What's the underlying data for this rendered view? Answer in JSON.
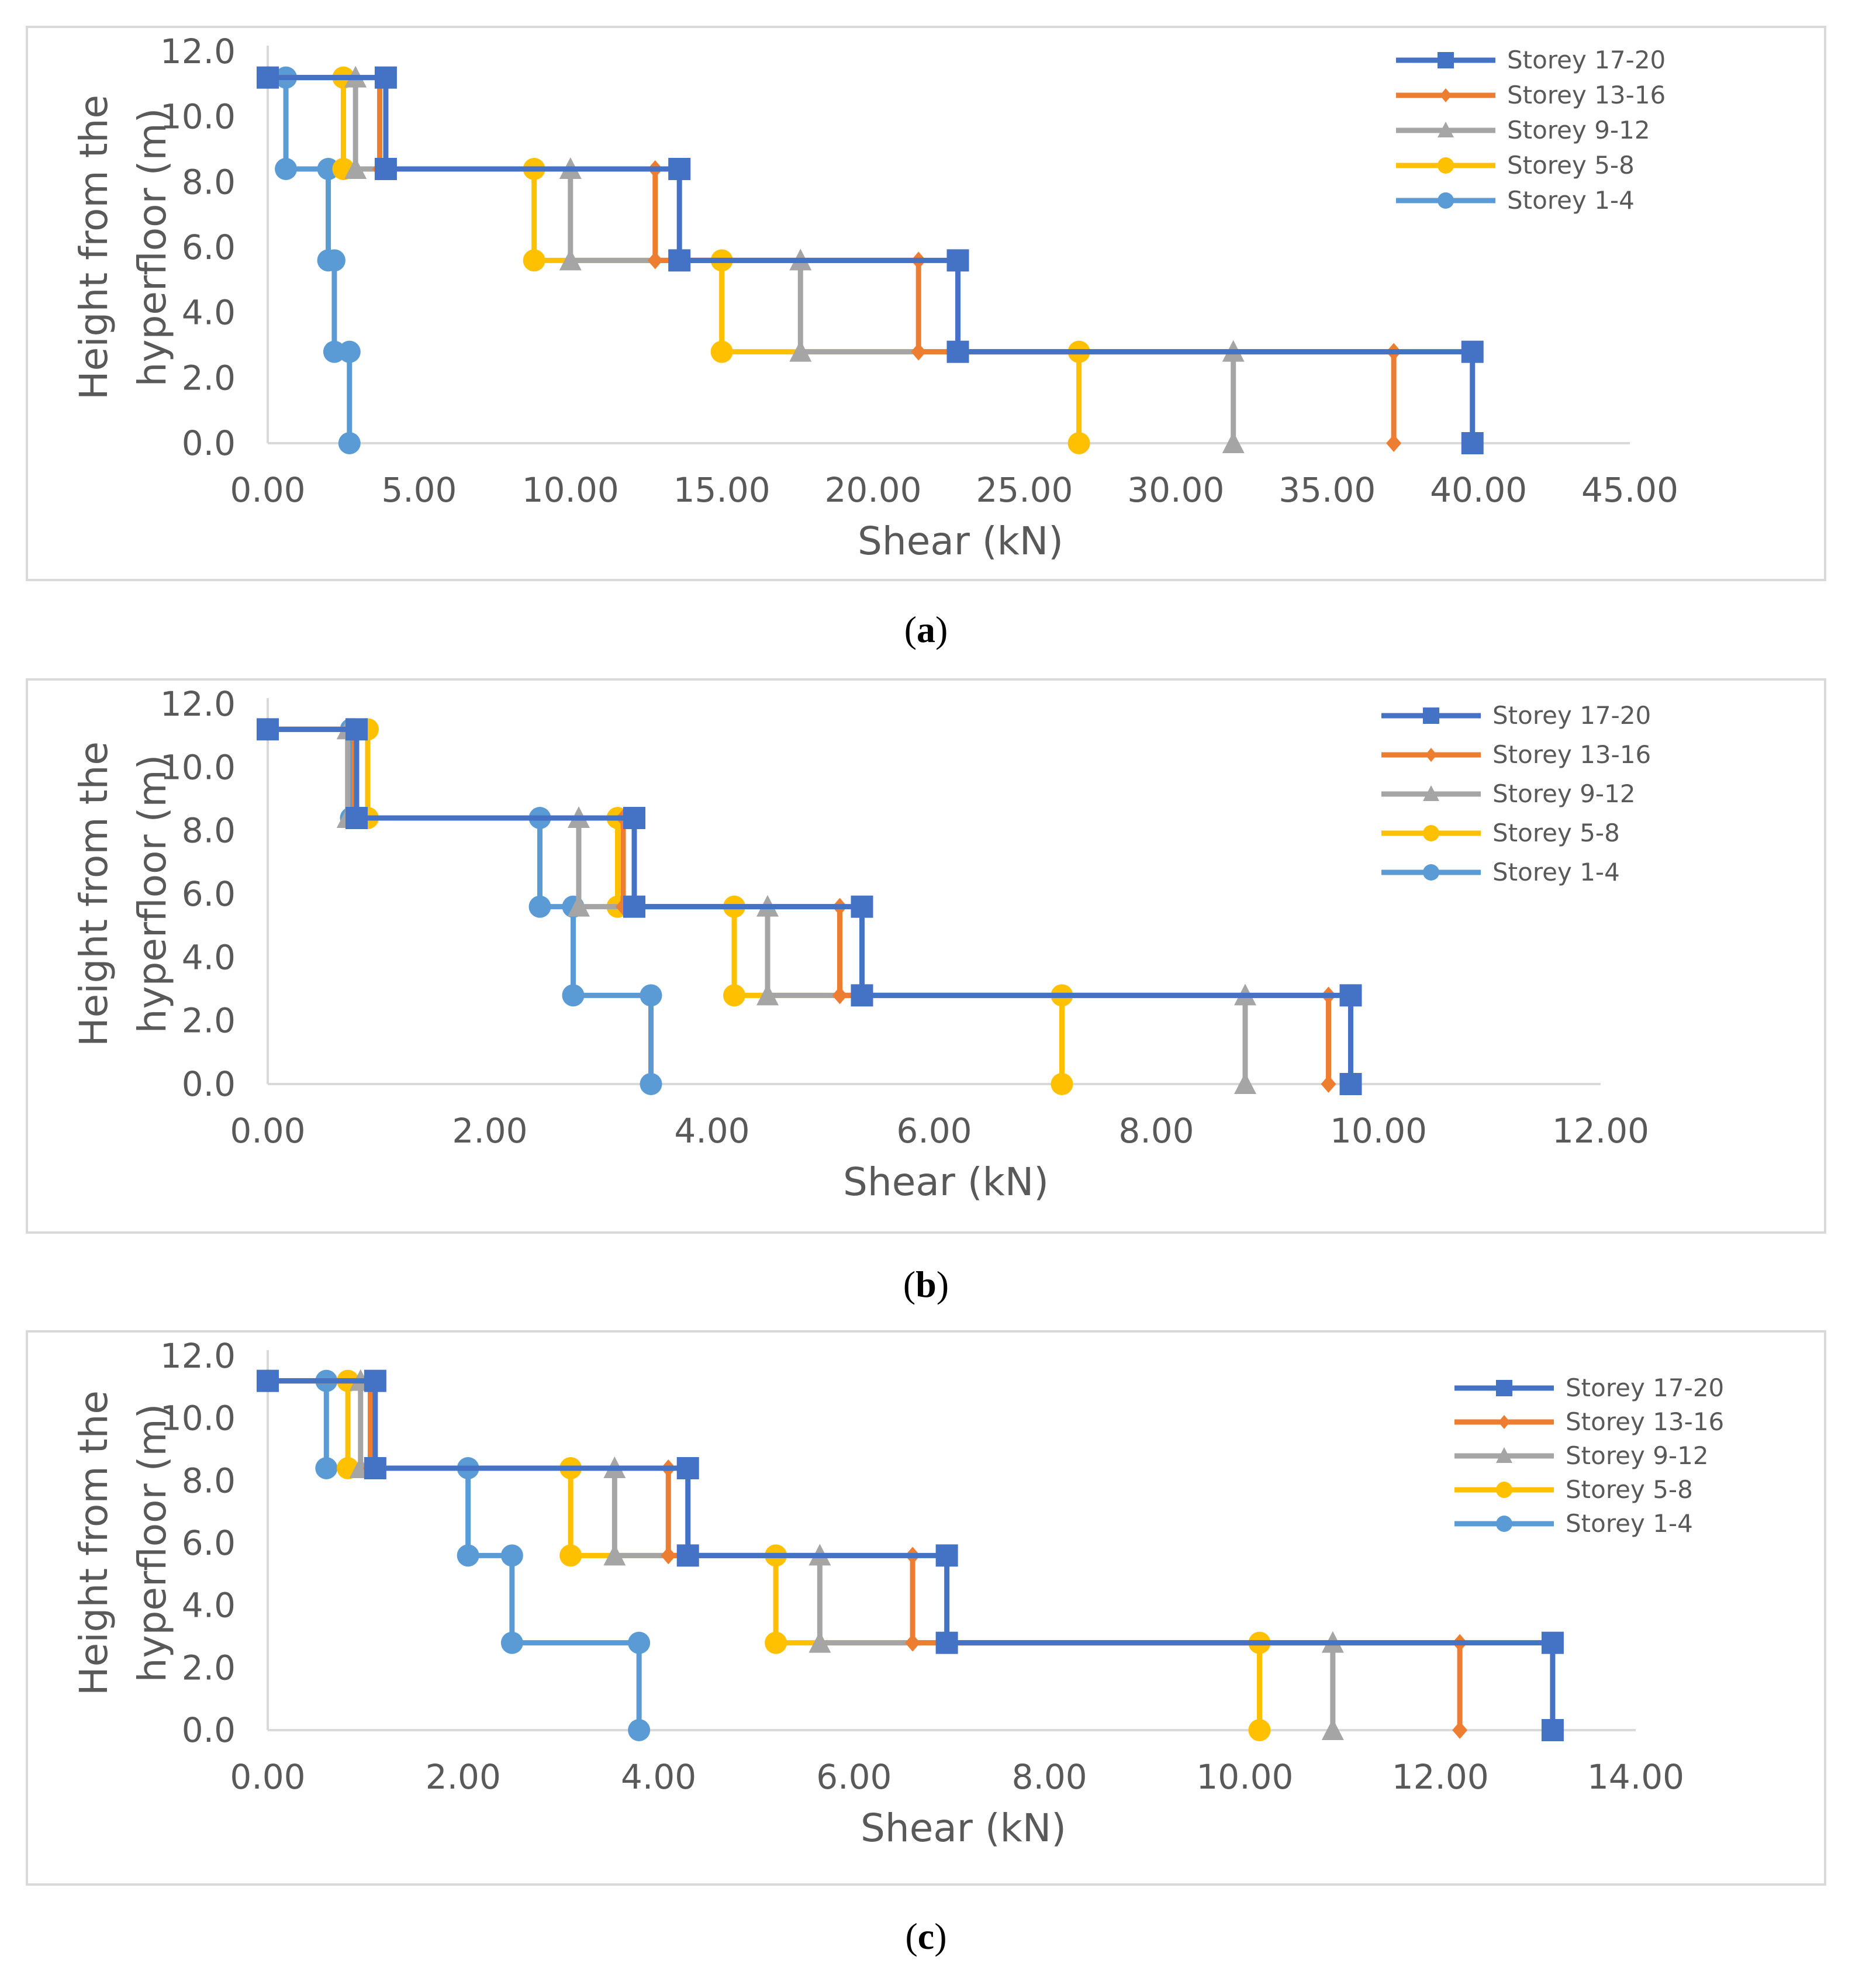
{
  "chart_data": [
    {
      "type": "line",
      "panel_label": "a",
      "xlabel": "Shear (kN)",
      "ylabel_line1": "Height from the",
      "ylabel_line2": "hyperfloor (m)",
      "xlim": [
        0,
        45
      ],
      "ylim": [
        0,
        12
      ],
      "xticks": [
        "0.00",
        "5.00",
        "10.00",
        "15.00",
        "20.00",
        "25.00",
        "30.00",
        "35.00",
        "40.00",
        "45.00"
      ],
      "yticks": [
        "0.0",
        "2.0",
        "4.0",
        "6.0",
        "8.0",
        "10.0",
        "12.0"
      ],
      "series": [
        {
          "name": "Storey 17-20",
          "color": "#4472C4",
          "marker": "square",
          "points": [
            [
              0,
              11.2
            ],
            [
              3.9,
              11.2
            ],
            [
              3.9,
              8.4
            ],
            [
              13.6,
              8.4
            ],
            [
              13.6,
              5.6
            ],
            [
              22.8,
              5.6
            ],
            [
              22.8,
              2.8
            ],
            [
              39.8,
              2.8
            ],
            [
              39.8,
              0
            ]
          ]
        },
        {
          "name": "Storey 13-16",
          "color": "#ED7D31",
          "marker": "diamond",
          "points": [
            [
              0,
              11.2
            ],
            [
              3.7,
              11.2
            ],
            [
              3.7,
              8.4
            ],
            [
              12.8,
              8.4
            ],
            [
              12.8,
              5.6
            ],
            [
              21.5,
              5.6
            ],
            [
              21.5,
              2.8
            ],
            [
              37.2,
              2.8
            ],
            [
              37.2,
              0
            ]
          ]
        },
        {
          "name": "Storey 9-12",
          "color": "#A5A5A5",
          "marker": "triangle",
          "points": [
            [
              0,
              11.2
            ],
            [
              2.9,
              11.2
            ],
            [
              2.9,
              8.4
            ],
            [
              10.0,
              8.4
            ],
            [
              10.0,
              5.6
            ],
            [
              17.6,
              5.6
            ],
            [
              17.6,
              2.8
            ],
            [
              31.9,
              2.8
            ],
            [
              31.9,
              0
            ]
          ]
        },
        {
          "name": "Storey 5-8",
          "color": "#FFC000",
          "marker": "circle",
          "points": [
            [
              0,
              11.2
            ],
            [
              2.5,
              11.2
            ],
            [
              2.5,
              8.4
            ],
            [
              8.8,
              8.4
            ],
            [
              8.8,
              5.6
            ],
            [
              15.0,
              5.6
            ],
            [
              15.0,
              2.8
            ],
            [
              26.8,
              2.8
            ],
            [
              26.8,
              0
            ]
          ]
        },
        {
          "name": "Storey 1-4",
          "color": "#5B9BD5",
          "marker": "circle",
          "points": [
            [
              0,
              11.2
            ],
            [
              0.6,
              11.2
            ],
            [
              0.6,
              8.4
            ],
            [
              2.0,
              8.4
            ],
            [
              2.0,
              5.6
            ],
            [
              2.2,
              5.6
            ],
            [
              2.2,
              2.8
            ],
            [
              2.7,
              2.8
            ],
            [
              2.7,
              0
            ]
          ]
        }
      ]
    },
    {
      "type": "line",
      "panel_label": "b",
      "xlabel": "Shear (kN)",
      "ylabel_line1": "Height from the",
      "ylabel_line2": "hyperfloor (m)",
      "xlim": [
        0,
        12
      ],
      "ylim": [
        0,
        12
      ],
      "xticks": [
        "0.00",
        "2.00",
        "4.00",
        "6.00",
        "8.00",
        "10.00",
        "12.00"
      ],
      "yticks": [
        "0.0",
        "2.0",
        "4.0",
        "6.0",
        "8.0",
        "10.0",
        "12.0"
      ],
      "series": [
        {
          "name": "Storey 17-20",
          "color": "#4472C4",
          "marker": "square",
          "points": [
            [
              0,
              11.2
            ],
            [
              0.8,
              11.2
            ],
            [
              0.8,
              8.4
            ],
            [
              3.3,
              8.4
            ],
            [
              3.3,
              5.6
            ],
            [
              5.35,
              5.6
            ],
            [
              5.35,
              2.8
            ],
            [
              9.75,
              2.8
            ],
            [
              9.75,
              0
            ]
          ]
        },
        {
          "name": "Storey 13-16",
          "color": "#ED7D31",
          "marker": "diamond",
          "points": [
            [
              0,
              11.2
            ],
            [
              0.78,
              11.2
            ],
            [
              0.78,
              8.4
            ],
            [
              3.2,
              8.4
            ],
            [
              3.2,
              5.6
            ],
            [
              5.15,
              5.6
            ],
            [
              5.15,
              2.8
            ],
            [
              9.55,
              2.8
            ],
            [
              9.55,
              0
            ]
          ]
        },
        {
          "name": "Storey 9-12",
          "color": "#A5A5A5",
          "marker": "triangle",
          "points": [
            [
              0,
              11.2
            ],
            [
              0.72,
              11.2
            ],
            [
              0.72,
              8.4
            ],
            [
              2.8,
              8.4
            ],
            [
              2.8,
              5.6
            ],
            [
              4.5,
              5.6
            ],
            [
              4.5,
              2.8
            ],
            [
              8.8,
              2.8
            ],
            [
              8.8,
              0
            ]
          ]
        },
        {
          "name": "Storey 5-8",
          "color": "#FFC000",
          "marker": "circle",
          "points": [
            [
              0,
              11.2
            ],
            [
              0.9,
              11.2
            ],
            [
              0.9,
              8.4
            ],
            [
              3.15,
              8.4
            ],
            [
              3.15,
              5.6
            ],
            [
              4.2,
              5.6
            ],
            [
              4.2,
              2.8
            ],
            [
              7.15,
              2.8
            ],
            [
              7.15,
              0
            ]
          ]
        },
        {
          "name": "Storey 1-4",
          "color": "#5B9BD5",
          "marker": "circle",
          "points": [
            [
              0,
              11.2
            ],
            [
              0.75,
              11.2
            ],
            [
              0.75,
              8.4
            ],
            [
              2.45,
              8.4
            ],
            [
              2.45,
              5.6
            ],
            [
              2.75,
              5.6
            ],
            [
              2.75,
              2.8
            ],
            [
              3.45,
              2.8
            ],
            [
              3.45,
              0
            ]
          ]
        }
      ]
    },
    {
      "type": "line",
      "panel_label": "c",
      "xlabel": "Shear (kN)",
      "ylabel_line1": "Height from the",
      "ylabel_line2": "hyperfloor (m)",
      "xlim": [
        0,
        14
      ],
      "ylim": [
        0,
        12
      ],
      "xticks": [
        "0.00",
        "2.00",
        "4.00",
        "6.00",
        "8.00",
        "10.00",
        "12.00",
        "14.00"
      ],
      "yticks": [
        "0.0",
        "2.0",
        "4.0",
        "6.0",
        "8.0",
        "10.0",
        "12.0"
      ],
      "series": [
        {
          "name": "Storey 17-20",
          "color": "#4472C4",
          "marker": "square",
          "points": [
            [
              0,
              11.2
            ],
            [
              1.1,
              11.2
            ],
            [
              1.1,
              8.4
            ],
            [
              4.3,
              8.4
            ],
            [
              4.3,
              5.6
            ],
            [
              6.95,
              5.6
            ],
            [
              6.95,
              2.8
            ],
            [
              13.15,
              2.8
            ],
            [
              13.15,
              0
            ]
          ]
        },
        {
          "name": "Storey 13-16",
          "color": "#ED7D31",
          "marker": "diamond",
          "points": [
            [
              0,
              11.2
            ],
            [
              1.05,
              11.2
            ],
            [
              1.05,
              8.4
            ],
            [
              4.1,
              8.4
            ],
            [
              4.1,
              5.6
            ],
            [
              6.6,
              5.6
            ],
            [
              6.6,
              2.8
            ],
            [
              12.2,
              2.8
            ],
            [
              12.2,
              0
            ]
          ]
        },
        {
          "name": "Storey 9-12",
          "color": "#A5A5A5",
          "marker": "triangle",
          "points": [
            [
              0,
              11.2
            ],
            [
              0.95,
              11.2
            ],
            [
              0.95,
              8.4
            ],
            [
              3.55,
              8.4
            ],
            [
              3.55,
              5.6
            ],
            [
              5.65,
              5.6
            ],
            [
              5.65,
              2.8
            ],
            [
              10.9,
              2.8
            ],
            [
              10.9,
              0
            ]
          ]
        },
        {
          "name": "Storey 5-8",
          "color": "#FFC000",
          "marker": "circle",
          "points": [
            [
              0,
              11.2
            ],
            [
              0.82,
              11.2
            ],
            [
              0.82,
              8.4
            ],
            [
              3.1,
              8.4
            ],
            [
              3.1,
              5.6
            ],
            [
              5.2,
              5.6
            ],
            [
              5.2,
              2.8
            ],
            [
              10.15,
              2.8
            ],
            [
              10.15,
              0
            ]
          ]
        },
        {
          "name": "Storey 1-4",
          "color": "#5B9BD5",
          "marker": "circle",
          "points": [
            [
              0,
              11.2
            ],
            [
              0.6,
              11.2
            ],
            [
              0.6,
              8.4
            ],
            [
              2.05,
              8.4
            ],
            [
              2.05,
              5.6
            ],
            [
              2.5,
              5.6
            ],
            [
              2.5,
              2.8
            ],
            [
              3.8,
              2.8
            ],
            [
              3.8,
              0
            ]
          ]
        }
      ]
    }
  ]
}
